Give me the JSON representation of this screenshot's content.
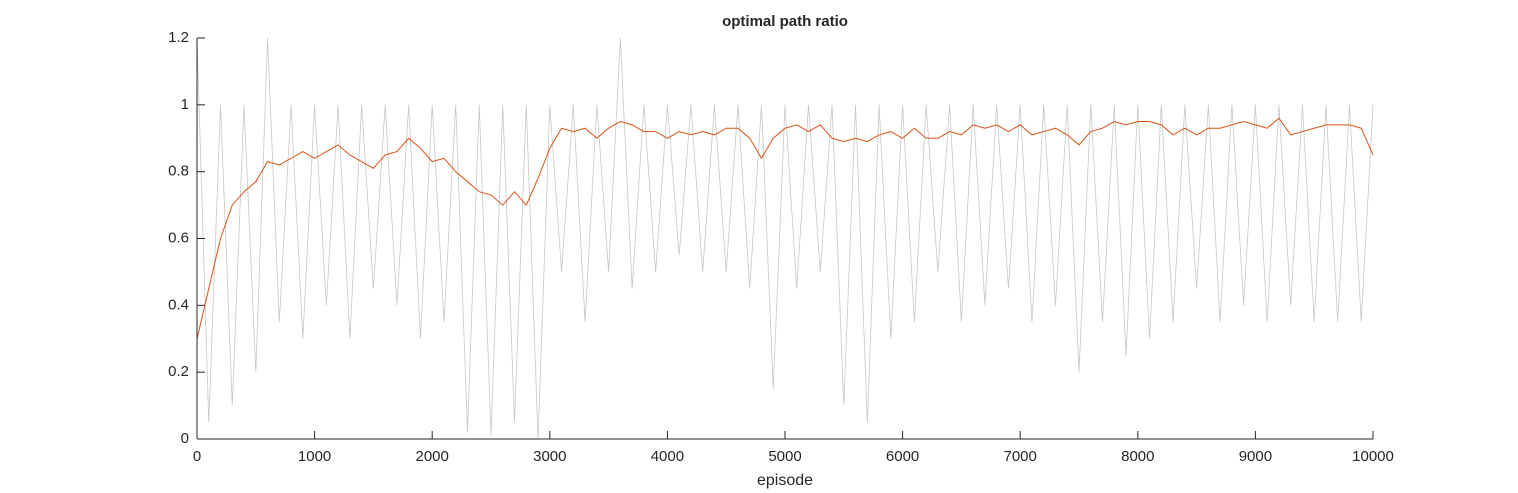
{
  "chart_data": {
    "type": "line",
    "title": "optimal path ratio",
    "xlabel": "episode",
    "x": [
      0,
      100,
      200,
      300,
      400,
      500,
      600,
      700,
      800,
      900,
      1000,
      1100,
      1200,
      1300,
      1400,
      1500,
      1600,
      1700,
      1800,
      1900,
      2000,
      2100,
      2200,
      2300,
      2400,
      2500,
      2600,
      2700,
      2800,
      2900,
      3000,
      3100,
      3200,
      3300,
      3400,
      3500,
      3600,
      3700,
      3800,
      3900,
      4000,
      4100,
      4200,
      4300,
      4400,
      4500,
      4600,
      4700,
      4800,
      4900,
      5000,
      5100,
      5200,
      5300,
      5400,
      5500,
      5600,
      5700,
      5800,
      5900,
      6000,
      6100,
      6200,
      6300,
      6400,
      6500,
      6600,
      6700,
      6800,
      6900,
      7000,
      7100,
      7200,
      7300,
      7400,
      7500,
      7600,
      7700,
      7800,
      7900,
      8000,
      8100,
      8200,
      8300,
      8400,
      8500,
      8600,
      8700,
      8800,
      8900,
      9000,
      9100,
      9200,
      9300,
      9400,
      9500,
      9600,
      9700,
      9800,
      9900,
      10000
    ],
    "series": [
      {
        "color": "#c8c8c8",
        "values": [
          1.2,
          0.05,
          1,
          0.1,
          1,
          0.2,
          1.2,
          0.35,
          1,
          0.3,
          1,
          0.4,
          1,
          0.3,
          1,
          0.45,
          1,
          0.4,
          1,
          0.3,
          1,
          0.35,
          1,
          0.02,
          1,
          0.01,
          1,
          0.05,
          1,
          0,
          1,
          0.5,
          1,
          0.35,
          1,
          0.5,
          1.2,
          0.45,
          1,
          0.5,
          1,
          0.55,
          1,
          0.5,
          1,
          0.5,
          1,
          0.45,
          1,
          0.15,
          1,
          0.45,
          1,
          0.5,
          1,
          0.1,
          1,
          0.05,
          1,
          0.3,
          1,
          0.35,
          1,
          0.5,
          1,
          0.35,
          1,
          0.4,
          1,
          0.45,
          1,
          0.35,
          1,
          0.4,
          1,
          0.2,
          1,
          0.35,
          1,
          0.25,
          1,
          0.3,
          1,
          0.35,
          1,
          0.45,
          1,
          0.35,
          1,
          0.4,
          1,
          0.35,
          1,
          0.4,
          1,
          0.35,
          1,
          0.35,
          1,
          0.35,
          1
        ]
      },
      {
        "color": "#d95319",
        "values": [
          0.3,
          0.45,
          0.6,
          0.7,
          0.74,
          0.77,
          0.83,
          0.82,
          0.84,
          0.86,
          0.84,
          0.86,
          0.88,
          0.85,
          0.83,
          0.81,
          0.85,
          0.86,
          0.9,
          0.87,
          0.83,
          0.84,
          0.8,
          0.77,
          0.74,
          0.73,
          0.7,
          0.74,
          0.7,
          0.78,
          0.87,
          0.93,
          0.92,
          0.93,
          0.9,
          0.93,
          0.95,
          0.94,
          0.92,
          0.92,
          0.9,
          0.92,
          0.91,
          0.92,
          0.91,
          0.93,
          0.93,
          0.9,
          0.84,
          0.9,
          0.93,
          0.94,
          0.92,
          0.94,
          0.9,
          0.89,
          0.9,
          0.89,
          0.91,
          0.92,
          0.9,
          0.93,
          0.9,
          0.9,
          0.92,
          0.91,
          0.94,
          0.93,
          0.94,
          0.92,
          0.94,
          0.91,
          0.92,
          0.93,
          0.91,
          0.88,
          0.92,
          0.93,
          0.95,
          0.94,
          0.95,
          0.95,
          0.94,
          0.91,
          0.93,
          0.91,
          0.93,
          0.93,
          0.94,
          0.95,
          0.94,
          0.93,
          0.96,
          0.91,
          0.92,
          0.93,
          0.94,
          0.94,
          0.94,
          0.93,
          0.85
        ]
      }
    ],
    "xlim": [
      0,
      10000
    ],
    "xticks": [
      0,
      1000,
      2000,
      3000,
      4000,
      5000,
      6000,
      7000,
      8000,
      9000,
      10000
    ],
    "ylim": [
      0,
      1.2
    ],
    "yticks": [
      0,
      0.2,
      0.4,
      0.6,
      0.8,
      1,
      1.2
    ],
    "grid": false
  }
}
